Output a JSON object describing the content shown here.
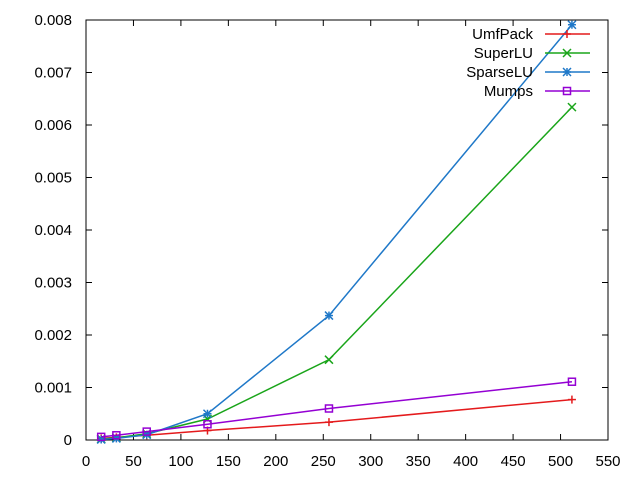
{
  "chart_data": {
    "type": "line",
    "title": "",
    "xlabel": "",
    "ylabel": "",
    "xlim": [
      0,
      550
    ],
    "ylim": [
      0,
      0.008
    ],
    "xticks": [
      0,
      50,
      100,
      150,
      200,
      250,
      300,
      350,
      400,
      450,
      500,
      550
    ],
    "yticks": [
      0,
      0.001,
      0.002,
      0.003,
      0.004,
      0.005,
      0.006,
      0.007,
      0.008
    ],
    "xtick_labels": [
      "0",
      "50",
      "100",
      "150",
      "200",
      "250",
      "300",
      "350",
      "400",
      "450",
      "500",
      "550"
    ],
    "ytick_labels": [
      "0",
      "0.001",
      "0.002",
      "0.003",
      "0.004",
      "0.005",
      "0.006",
      "0.007",
      "0.008"
    ],
    "grid": false,
    "legend_position": "top-right",
    "x": [
      16,
      32,
      64,
      128,
      256,
      512
    ],
    "series": [
      {
        "name": "UmfPack",
        "color": "#e41a1c",
        "marker": "plus",
        "values": [
          3e-05,
          5e-05,
          9e-05,
          0.00018,
          0.00034,
          0.00077
        ]
      },
      {
        "name": "SuperLU",
        "color": "#1aa51a",
        "marker": "cross",
        "values": [
          2e-05,
          4e-05,
          0.00012,
          0.0004,
          0.00153,
          0.00634
        ]
      },
      {
        "name": "SparseLU",
        "color": "#1f78c8",
        "marker": "star",
        "values": [
          1e-05,
          3e-05,
          0.0001,
          0.0005,
          0.00237,
          0.00791
        ]
      },
      {
        "name": "Mumps",
        "color": "#9400d3",
        "marker": "square",
        "values": [
          6e-05,
          9e-05,
          0.00016,
          0.0003,
          0.0006,
          0.00111
        ]
      }
    ]
  }
}
